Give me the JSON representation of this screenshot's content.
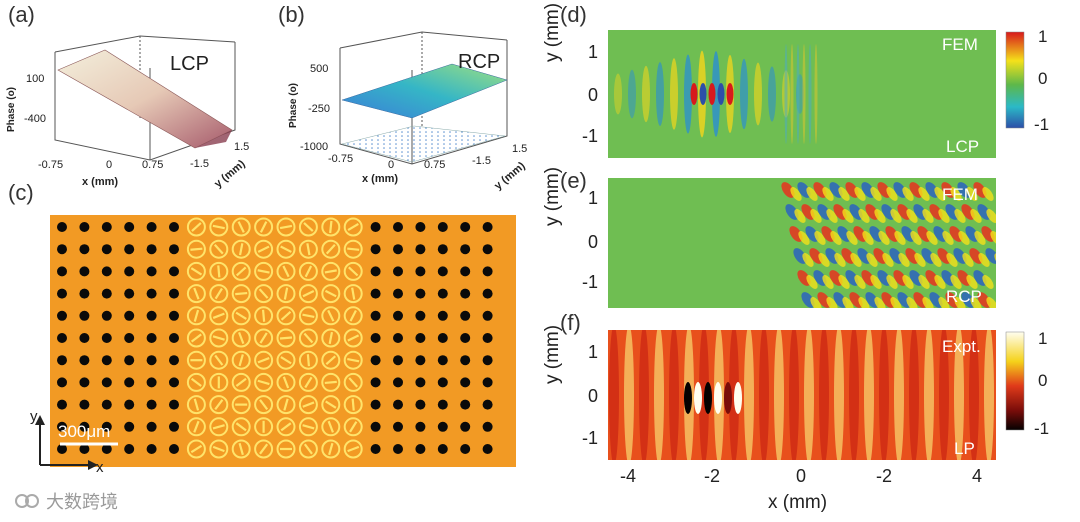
{
  "panels": {
    "a": {
      "label": "(a)",
      "title": "LCP",
      "zlabel": "Phase (o)",
      "zticks": [
        "100",
        "-400"
      ],
      "xlabel": "x (mm)",
      "xticks": [
        "-0.75",
        "0",
        "0.75"
      ],
      "ylabel": "y (mm)",
      "yticks": [
        "-1.5",
        "1.5"
      ]
    },
    "b": {
      "label": "(b)",
      "title": "RCP",
      "zlabel": "Phase (o)",
      "zticks": [
        "500",
        "-250",
        "-1000"
      ],
      "xlabel": "x (mm)",
      "xticks": [
        "-0.75",
        "0",
        "0.75"
      ],
      "ylabel": "y (mm)",
      "yticks": [
        "-1.5",
        "1.5"
      ]
    },
    "c": {
      "label": "(c)",
      "scalebar": "300μm",
      "axis_x": "x",
      "axis_y": "y"
    },
    "d": {
      "label": "(d)",
      "method": "FEM",
      "pol": "LCP",
      "ylabel": "y (mm)",
      "yticks": [
        "1",
        "0",
        "-1"
      ]
    },
    "e": {
      "label": "(e)",
      "method": "FEM",
      "pol": "RCP",
      "ylabel": "y (mm)",
      "yticks": [
        "1",
        "0",
        "-1"
      ]
    },
    "f": {
      "label": "(f)",
      "method": "Expt.",
      "pol": "LP",
      "ylabel": "y (mm)",
      "yticks": [
        "1",
        "0",
        "-1"
      ],
      "xlabel": "x (mm)",
      "xticks": [
        "-4",
        "-2",
        "0",
        "-2",
        "4"
      ]
    }
  },
  "colorbar_fem": {
    "ticks": [
      "1",
      "0",
      "-1"
    ],
    "colors": [
      "#d7191c",
      "#f4e11a",
      "#5db84a",
      "#2bb9c7",
      "#2c4fa8"
    ]
  },
  "colorbar_expt": {
    "ticks": [
      "1",
      "0",
      "-1"
    ],
    "colors": [
      "#fffef0",
      "#f5d21a",
      "#e03a1a",
      "#7a0d0a",
      "#050101"
    ]
  },
  "watermark": "大数跨境",
  "colors": {
    "substrate": "#f29a24",
    "hole": "#0a0a0a",
    "meta_atom": "#ffe36a",
    "fem_bg": "#6fbe52"
  }
}
